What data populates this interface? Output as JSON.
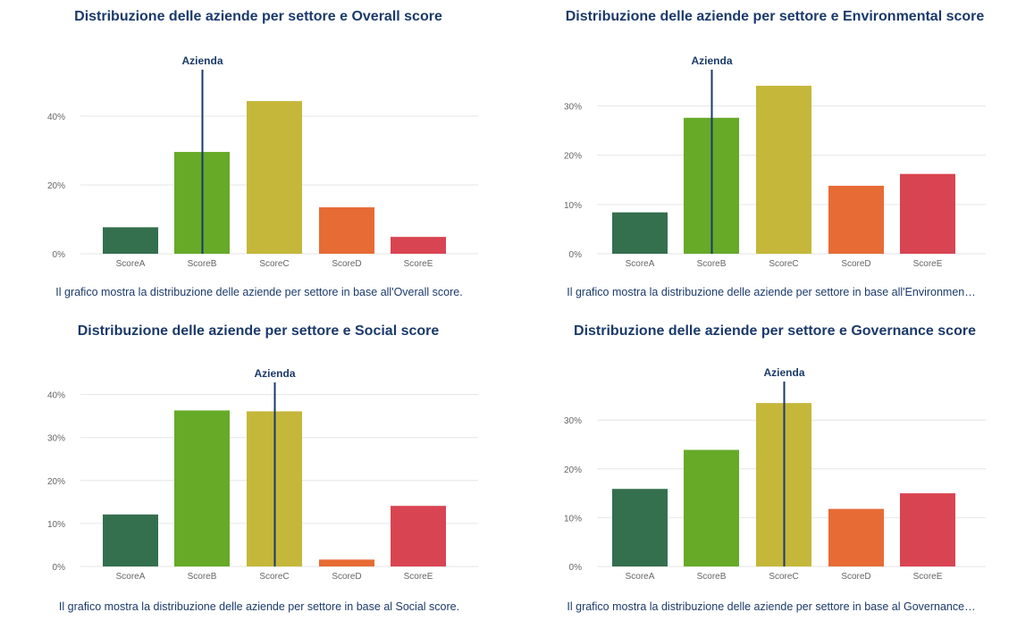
{
  "colors": {
    "title": "#1b3a6b",
    "marker": "#1b3a6b",
    "grid": "#e6e6e6",
    "tick": "#666666",
    "bars": [
      "#346f4e",
      "#66aa28",
      "#c5b73a",
      "#e76b35",
      "#d94452"
    ]
  },
  "charts": [
    {
      "title": "Distribuzione delle aziende per settore e Overall score",
      "caption": "Il grafico mostra la distribuzione delle aziende per settore in base all'Overall score.",
      "marker_label": "Azienda"
    },
    {
      "title": "Distribuzione delle aziende per settore e Environmental score",
      "caption": "Il grafico mostra la distribuzione delle aziende per settore in base all'Environmen…",
      "marker_label": "Azienda"
    },
    {
      "title": "Distribuzione delle aziende per settore e Social score",
      "caption": "Il grafico mostra la distribuzione delle aziende per settore in base al Social score.",
      "marker_label": "Azienda"
    },
    {
      "title": "Distribuzione delle aziende per settore e Governance score",
      "caption": "Il grafico mostra la distribuzione delle aziende per settore in base al Governance…",
      "marker_label": "Azienda"
    }
  ],
  "chart_data": [
    {
      "type": "bar",
      "title": "Distribuzione delle aziende per settore e Overall score",
      "categories": [
        "ScoreA",
        "ScoreB",
        "ScoreC",
        "ScoreD",
        "ScoreE"
      ],
      "values": [
        7.7,
        29.6,
        44.4,
        13.5,
        4.9
      ],
      "yticks": [
        0,
        20,
        40
      ],
      "ytick_labels": [
        "0%",
        "20%",
        "40%"
      ],
      "ylim": [
        0,
        53
      ],
      "marker_category": "ScoreB",
      "marker_label": "Azienda",
      "grid": true
    },
    {
      "type": "bar",
      "title": "Distribuzione delle aziende per settore e Environmental score",
      "categories": [
        "ScoreA",
        "ScoreB",
        "ScoreC",
        "ScoreD",
        "ScoreE"
      ],
      "values": [
        8.4,
        27.6,
        34.1,
        13.8,
        16.2
      ],
      "yticks": [
        0,
        10,
        20,
        30
      ],
      "ytick_labels": [
        "0%",
        "10%",
        "20%",
        "30%"
      ],
      "ylim": [
        0,
        37
      ],
      "marker_category": "ScoreB",
      "marker_label": "Azienda",
      "grid": true
    },
    {
      "type": "bar",
      "title": "Distribuzione delle aziende per settore e Social score",
      "categories": [
        "ScoreA",
        "ScoreB",
        "ScoreC",
        "ScoreD",
        "ScoreE"
      ],
      "values": [
        12.1,
        36.3,
        36.1,
        1.6,
        14.1
      ],
      "yticks": [
        0,
        10,
        20,
        30,
        40
      ],
      "ytick_labels": [
        "0%",
        "10%",
        "20%",
        "30%",
        "40%"
      ],
      "ylim": [
        0,
        42
      ],
      "marker_category": "ScoreC",
      "marker_label": "Azienda",
      "grid": true
    },
    {
      "type": "bar",
      "title": "Distribuzione delle aziende per settore e Governance score",
      "categories": [
        "ScoreA",
        "ScoreB",
        "ScoreC",
        "ScoreD",
        "ScoreE"
      ],
      "values": [
        15.9,
        23.9,
        33.5,
        11.8,
        15.0
      ],
      "yticks": [
        0,
        10,
        20,
        30
      ],
      "ytick_labels": [
        "0%",
        "10%",
        "20%",
        "30%"
      ],
      "ylim": [
        0,
        37
      ],
      "marker_category": "ScoreC",
      "marker_label": "Azienda",
      "grid": true
    }
  ]
}
